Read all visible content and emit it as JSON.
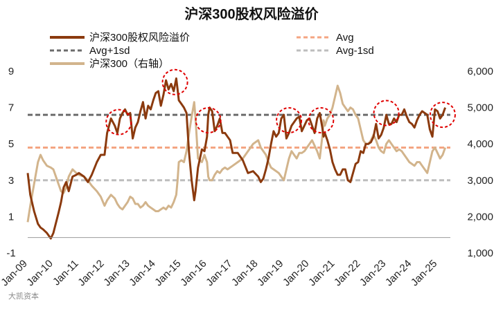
{
  "chart_data": {
    "type": "line",
    "title": "沪深300股权风险溢价",
    "legend_position": "top",
    "y_left": {
      "min": -1,
      "max": 9,
      "ticks": [
        -1,
        1,
        3,
        5,
        7,
        9
      ]
    },
    "y_right": {
      "min": 1000,
      "max": 6000,
      "ticks": [
        1000,
        2000,
        3000,
        4000,
        5000,
        6000
      ],
      "tick_labels": [
        "1,000",
        "2,000",
        "3,000",
        "4,000",
        "5,000",
        "6,000"
      ]
    },
    "x_range": [
      2009.0,
      2025.5
    ],
    "x_ticks": [
      {
        "x": 2009,
        "label": "Jan-09"
      },
      {
        "x": 2010,
        "label": "Jan-10"
      },
      {
        "x": 2011,
        "label": "Jan-11"
      },
      {
        "x": 2012,
        "label": "Jan-12"
      },
      {
        "x": 2013,
        "label": "Jan-13"
      },
      {
        "x": 2014,
        "label": "Jan-14"
      },
      {
        "x": 2015,
        "label": "Jan-15"
      },
      {
        "x": 2016,
        "label": "Jan-16"
      },
      {
        "x": 2017,
        "label": "Jan-17"
      },
      {
        "x": 2018,
        "label": "Jan-18"
      },
      {
        "x": 2019,
        "label": "Jan-19"
      },
      {
        "x": 2020,
        "label": "Jan-20"
      },
      {
        "x": 2021,
        "label": "Jan-21"
      },
      {
        "x": 2022,
        "label": "Jan-22"
      },
      {
        "x": 2023,
        "label": "Jan-23"
      },
      {
        "x": 2024,
        "label": "Jan-24"
      },
      {
        "x": 2025,
        "label": "Jan-25"
      }
    ],
    "reference_lines": [
      {
        "name": "Avg",
        "value": 4.8,
        "color": "#F4A582"
      },
      {
        "name": "Avg+1sd",
        "value": 6.6,
        "color": "#6B6B6B"
      },
      {
        "name": "Avg-1sd",
        "value": 3.0,
        "color": "#BDBDBD"
      }
    ],
    "series": [
      {
        "name": "沪深300股权风险溢价",
        "axis": "left",
        "color": "#8B3A0E",
        "x": [
          2009.0,
          2009.1,
          2009.25,
          2009.4,
          2009.5,
          2009.6,
          2009.75,
          2009.9,
          2010.0,
          2010.2,
          2010.3,
          2010.4,
          2010.5,
          2010.6,
          2010.75,
          2010.9,
          2011.0,
          2011.2,
          2011.35,
          2011.5,
          2011.7,
          2011.85,
          2012.0,
          2012.1,
          2012.25,
          2012.4,
          2012.5,
          2012.6,
          2012.7,
          2012.8,
          2012.9,
          2013.0,
          2013.1,
          2013.2,
          2013.3,
          2013.4,
          2013.5,
          2013.6,
          2013.7,
          2013.8,
          2013.9,
          2014.0,
          2014.1,
          2014.2,
          2014.3,
          2014.4,
          2014.5,
          2014.6,
          2014.7,
          2014.8,
          2014.85,
          2014.9,
          2015.0,
          2015.1,
          2015.2,
          2015.3,
          2015.4,
          2015.5,
          2015.55,
          2015.65,
          2015.8,
          2015.9,
          2016.0,
          2016.05,
          2016.1,
          2016.2,
          2016.3,
          2016.4,
          2016.5,
          2016.6,
          2016.7,
          2016.8,
          2016.9,
          2017.0,
          2017.2,
          2017.4,
          2017.6,
          2017.8,
          2018.0,
          2018.1,
          2018.2,
          2018.3,
          2018.4,
          2018.5,
          2018.6,
          2018.7,
          2018.8,
          2018.9,
          2019.0,
          2019.1,
          2019.2,
          2019.3,
          2019.4,
          2019.5,
          2019.6,
          2019.7,
          2019.8,
          2019.9,
          2020.0,
          2020.1,
          2020.2,
          2020.3,
          2020.4,
          2020.5,
          2020.55,
          2020.6,
          2020.7,
          2020.8,
          2020.9,
          2021.0,
          2021.1,
          2021.2,
          2021.3,
          2021.4,
          2021.5,
          2021.6,
          2021.7,
          2021.8,
          2021.9,
          2022.0,
          2022.1,
          2022.2,
          2022.3,
          2022.4,
          2022.5,
          2022.6,
          2022.7,
          2022.8,
          2022.9,
          2023.0,
          2023.1,
          2023.2,
          2023.3,
          2023.4,
          2023.5,
          2023.6,
          2023.7,
          2023.8,
          2023.9,
          2024.0,
          2024.1,
          2024.2,
          2024.3,
          2024.4,
          2024.5,
          2024.6,
          2024.7,
          2024.8,
          2024.9,
          2025.0,
          2025.1,
          2025.2,
          2025.3
        ],
        "y": [
          3.4,
          2.2,
          1.3,
          0.6,
          0.4,
          0.3,
          0.1,
          -0.2,
          0.1,
          1.2,
          1.8,
          2.6,
          2.9,
          2.4,
          3.2,
          3.3,
          3.4,
          3.2,
          2.9,
          3.3,
          4.0,
          4.4,
          4.4,
          5.6,
          6.4,
          6.0,
          5.6,
          6.4,
          6.7,
          6.9,
          6.6,
          6.7,
          5.3,
          5.9,
          6.2,
          6.8,
          7.3,
          6.4,
          7.1,
          6.9,
          7.4,
          7.8,
          7.9,
          7.1,
          7.7,
          8.5,
          8.0,
          8.3,
          7.9,
          8.6,
          8.0,
          7.4,
          7.2,
          7.0,
          6.7,
          4.5,
          3.0,
          1.9,
          2.4,
          3.7,
          4.7,
          4.6,
          5.4,
          6.6,
          7.0,
          6.8,
          5.7,
          6.0,
          6.4,
          5.6,
          5.6,
          5.4,
          5.2,
          4.5,
          4.5,
          4.1,
          3.4,
          3.5,
          3.2,
          2.9,
          3.1,
          3.6,
          4.2,
          5.0,
          5.7,
          5.4,
          5.6,
          6.4,
          6.6,
          5.3,
          5.6,
          6.0,
          6.2,
          6.4,
          6.5,
          5.7,
          6.0,
          6.3,
          6.4,
          6.0,
          5.6,
          6.4,
          6.7,
          5.9,
          5.4,
          5.6,
          5.2,
          4.7,
          4.0,
          3.6,
          3.3,
          3.3,
          3.6,
          3.6,
          3.0,
          2.9,
          3.4,
          3.9,
          4.0,
          4.6,
          4.5,
          5.0,
          5.0,
          5.1,
          5.4,
          6.1,
          5.3,
          5.5,
          5.9,
          6.6,
          6.1,
          6.1,
          6.4,
          6.2,
          6.6,
          6.6,
          6.9,
          6.5,
          6.2,
          6.1,
          5.9,
          6.3,
          6.6,
          6.8,
          6.7,
          6.6,
          5.8,
          5.4,
          6.9,
          6.8,
          6.4,
          6.6,
          7.0
        ]
      },
      {
        "name": "沪深300（右轴）",
        "axis": "right",
        "color": "#D2B48C",
        "x": [
          2009.0,
          2009.1,
          2009.25,
          2009.4,
          2009.5,
          2009.6,
          2009.75,
          2009.9,
          2010.0,
          2010.2,
          2010.3,
          2010.4,
          2010.5,
          2010.6,
          2010.75,
          2010.9,
          2011.0,
          2011.2,
          2011.35,
          2011.5,
          2011.7,
          2011.85,
          2012.0,
          2012.1,
          2012.25,
          2012.4,
          2012.5,
          2012.6,
          2012.7,
          2012.8,
          2012.9,
          2013.0,
          2013.1,
          2013.2,
          2013.3,
          2013.4,
          2013.5,
          2013.6,
          2013.7,
          2013.8,
          2013.9,
          2014.0,
          2014.1,
          2014.2,
          2014.3,
          2014.4,
          2014.5,
          2014.6,
          2014.7,
          2014.8,
          2014.85,
          2014.9,
          2015.0,
          2015.1,
          2015.2,
          2015.3,
          2015.4,
          2015.5,
          2015.55,
          2015.65,
          2015.8,
          2015.9,
          2016.0,
          2016.05,
          2016.1,
          2016.2,
          2016.3,
          2016.4,
          2016.5,
          2016.6,
          2016.7,
          2016.8,
          2016.9,
          2017.0,
          2017.2,
          2017.4,
          2017.6,
          2017.8,
          2018.0,
          2018.1,
          2018.2,
          2018.3,
          2018.4,
          2018.5,
          2018.6,
          2018.7,
          2018.8,
          2018.9,
          2019.0,
          2019.1,
          2019.2,
          2019.3,
          2019.4,
          2019.5,
          2019.6,
          2019.7,
          2019.8,
          2019.9,
          2020.0,
          2020.1,
          2020.2,
          2020.3,
          2020.4,
          2020.5,
          2020.55,
          2020.6,
          2020.7,
          2020.8,
          2020.9,
          2021.0,
          2021.1,
          2021.2,
          2021.3,
          2021.4,
          2021.5,
          2021.6,
          2021.7,
          2021.8,
          2021.9,
          2022.0,
          2022.1,
          2022.2,
          2022.3,
          2022.4,
          2022.5,
          2022.6,
          2022.7,
          2022.8,
          2022.9,
          2023.0,
          2023.1,
          2023.2,
          2023.3,
          2023.4,
          2023.5,
          2023.6,
          2023.7,
          2023.8,
          2023.9,
          2024.0,
          2024.1,
          2024.2,
          2024.3,
          2024.4,
          2024.5,
          2024.6,
          2024.7,
          2024.8,
          2024.9,
          2025.0,
          2025.1,
          2025.2,
          2025.3
        ],
        "y": [
          1850,
          2300,
          2900,
          3500,
          3700,
          3550,
          3400,
          3350,
          3300,
          2900,
          2700,
          2650,
          2800,
          3100,
          3300,
          3200,
          3150,
          3100,
          3000,
          2850,
          2700,
          2550,
          2300,
          2450,
          2600,
          2500,
          2350,
          2250,
          2200,
          2300,
          2400,
          2550,
          2500,
          2350,
          2350,
          2250,
          2300,
          2400,
          2300,
          2250,
          2200,
          2150,
          2150,
          2200,
          2250,
          2200,
          2300,
          2250,
          2400,
          2600,
          3000,
          3500,
          3550,
          3500,
          3800,
          4300,
          4750,
          5150,
          4700,
          3600,
          3500,
          3700,
          3500,
          3100,
          3000,
          3000,
          3150,
          3250,
          3200,
          3300,
          3350,
          3300,
          3350,
          3400,
          3500,
          3600,
          3800,
          4000,
          4100,
          3900,
          3800,
          3700,
          3500,
          3350,
          3300,
          3250,
          3200,
          3100,
          3000,
          3300,
          3600,
          3800,
          3700,
          3600,
          3750,
          3750,
          3800,
          3900,
          4000,
          4100,
          3950,
          3800,
          3600,
          4200,
          4650,
          4500,
          4700,
          4800,
          5000,
          5300,
          5600,
          5400,
          5100,
          5000,
          4900,
          5000,
          4950,
          4800,
          4700,
          4400,
          4100,
          4000,
          4000,
          4100,
          4250,
          4100,
          3900,
          3800,
          3750,
          4000,
          4100,
          4000,
          3900,
          3800,
          3850,
          3800,
          3700,
          3600,
          3500,
          3450,
          3400,
          3500,
          3500,
          3400,
          3300,
          3200,
          3500,
          3800,
          3900,
          3750,
          3600,
          3700,
          3900
        ]
      }
    ],
    "highlight_circles": [
      {
        "x": 2012.55,
        "y": 6.2
      },
      {
        "x": 2014.75,
        "y": 8.4
      },
      {
        "x": 2016.05,
        "y": 6.3
      },
      {
        "x": 2019.2,
        "y": 6.3
      },
      {
        "x": 2020.45,
        "y": 6.3
      },
      {
        "x": 2023.0,
        "y": 6.7
      },
      {
        "x": 2025.2,
        "y": 6.6
      }
    ]
  },
  "watermark": "大凯资本"
}
